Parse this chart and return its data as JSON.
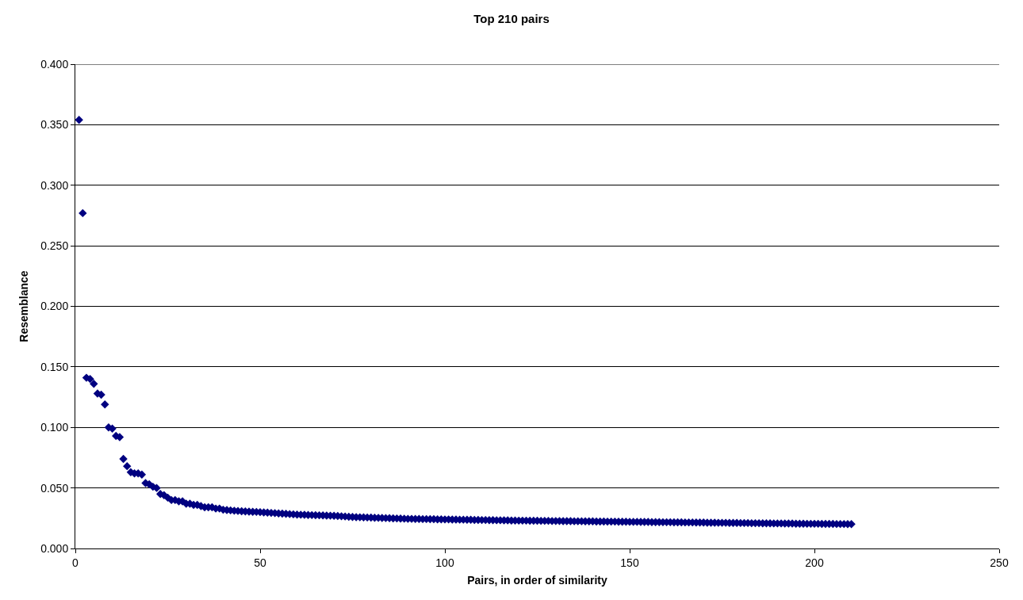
{
  "chart_data": {
    "type": "scatter",
    "title": "Top 210 pairs",
    "xlabel": "Pairs, in order of similarity",
    "ylabel": "Resemblance",
    "x": [
      1,
      2,
      3,
      4,
      5,
      6,
      7,
      8,
      9,
      10,
      11,
      12,
      13,
      14,
      15,
      16,
      17,
      18,
      19,
      20,
      21,
      22,
      23,
      24,
      25,
      26,
      27,
      28,
      29,
      30,
      31,
      32,
      33,
      34,
      35,
      36,
      37,
      38,
      39,
      40,
      41,
      42,
      43,
      44,
      45,
      46,
      47,
      48,
      49,
      50,
      51,
      52,
      53,
      54,
      55,
      56,
      57,
      58,
      59,
      60,
      61,
      62,
      63,
      64,
      65,
      66,
      67,
      68,
      69,
      70,
      71,
      72,
      73,
      74,
      75,
      76,
      77,
      78,
      79,
      80,
      81,
      82,
      83,
      84,
      85,
      86,
      87,
      88,
      89,
      90,
      91,
      92,
      93,
      94,
      95,
      96,
      97,
      98,
      99,
      100,
      101,
      102,
      103,
      104,
      105,
      106,
      107,
      108,
      109,
      110,
      111,
      112,
      113,
      114,
      115,
      116,
      117,
      118,
      119,
      120,
      121,
      122,
      123,
      124,
      125,
      126,
      127,
      128,
      129,
      130,
      131,
      132,
      133,
      134,
      135,
      136,
      137,
      138,
      139,
      140,
      141,
      142,
      143,
      144,
      145,
      146,
      147,
      148,
      149,
      150,
      151,
      152,
      153,
      154,
      155,
      156,
      157,
      158,
      159,
      160,
      161,
      162,
      163,
      164,
      165,
      166,
      167,
      168,
      169,
      170,
      171,
      172,
      173,
      174,
      175,
      176,
      177,
      178,
      179,
      180,
      181,
      182,
      183,
      184,
      185,
      186,
      187,
      188,
      189,
      190,
      191,
      192,
      193,
      194,
      195,
      196,
      197,
      198,
      199,
      200,
      201,
      202,
      203,
      204,
      205,
      206,
      207,
      208,
      209,
      210
    ],
    "series": [
      {
        "color": "#000080",
        "values": [
          0.354,
          0.277,
          0.141,
          0.14,
          0.136,
          0.128,
          0.127,
          0.119,
          0.1,
          0.099,
          0.093,
          0.092,
          0.074,
          0.068,
          0.063,
          0.062,
          0.062,
          0.061,
          0.054,
          0.053,
          0.051,
          0.05,
          0.045,
          0.044,
          0.042,
          0.04,
          0.04,
          0.039,
          0.039,
          0.037,
          0.037,
          0.036,
          0.036,
          0.035,
          0.034,
          0.034,
          0.034,
          0.033,
          0.033,
          0.032,
          0.0318,
          0.0315,
          0.0312,
          0.031,
          0.0308,
          0.0306,
          0.0304,
          0.0303,
          0.0302,
          0.03,
          0.0298,
          0.0296,
          0.0294,
          0.0292,
          0.029,
          0.0288,
          0.0286,
          0.0284,
          0.0282,
          0.028,
          0.0279,
          0.0278,
          0.0277,
          0.0276,
          0.0275,
          0.0274,
          0.0273,
          0.0272,
          0.0271,
          0.027,
          0.0268,
          0.0266,
          0.0264,
          0.0262,
          0.026,
          0.0259,
          0.0258,
          0.0257,
          0.0256,
          0.0255,
          0.0254,
          0.0253,
          0.0252,
          0.0251,
          0.025,
          0.0249,
          0.0248,
          0.0247,
          0.0246,
          0.0245,
          0.0245,
          0.0244,
          0.0244,
          0.0243,
          0.0243,
          0.0242,
          0.0242,
          0.0241,
          0.0241,
          0.024,
          0.024,
          0.0239,
          0.0239,
          0.0238,
          0.0238,
          0.0237,
          0.0237,
          0.0236,
          0.0236,
          0.0235,
          0.0235,
          0.0234,
          0.0234,
          0.0233,
          0.0233,
          0.0232,
          0.0232,
          0.0231,
          0.0231,
          0.023,
          0.023,
          0.023,
          0.0229,
          0.0229,
          0.0229,
          0.0228,
          0.0228,
          0.0228,
          0.0227,
          0.0227,
          0.0227,
          0.0226,
          0.0226,
          0.0226,
          0.0225,
          0.0225,
          0.0225,
          0.0224,
          0.0224,
          0.0224,
          0.0223,
          0.0223,
          0.0223,
          0.0222,
          0.0222,
          0.0222,
          0.0221,
          0.0221,
          0.0221,
          0.022,
          0.022,
          0.022,
          0.0219,
          0.0219,
          0.0219,
          0.0218,
          0.0218,
          0.0218,
          0.0217,
          0.0217,
          0.0217,
          0.0216,
          0.0216,
          0.0216,
          0.0215,
          0.0215,
          0.0215,
          0.0214,
          0.0214,
          0.0214,
          0.0213,
          0.0213,
          0.0213,
          0.0212,
          0.0212,
          0.0212,
          0.0211,
          0.0211,
          0.0211,
          0.021,
          0.021,
          0.021,
          0.0209,
          0.0209,
          0.0209,
          0.0208,
          0.0208,
          0.0208,
          0.0207,
          0.0207,
          0.0207,
          0.0206,
          0.0206,
          0.0206,
          0.0205,
          0.0205,
          0.0205,
          0.0204,
          0.0204,
          0.0204,
          0.0204,
          0.0203,
          0.0203,
          0.0203,
          0.0203,
          0.0202,
          0.0202,
          0.0202,
          0.0201,
          0.0201
        ]
      }
    ],
    "xlim": [
      0,
      250
    ],
    "xticks": [
      0,
      50,
      100,
      150,
      200,
      250
    ],
    "ylim": [
      0,
      0.4
    ],
    "yticks": [
      {
        "value": 0,
        "label": "0.000"
      },
      {
        "value": 0.05,
        "label": "0.050"
      },
      {
        "value": 0.1,
        "label": "0.100"
      },
      {
        "value": 0.15,
        "label": "0.150"
      },
      {
        "value": 0.2,
        "label": "0.200"
      },
      {
        "value": 0.25,
        "label": "0.250"
      },
      {
        "value": 0.3,
        "label": "0.300"
      },
      {
        "value": 0.35,
        "label": "0.350"
      },
      {
        "value": 0.4,
        "label": "0.400"
      }
    ],
    "grid": "y",
    "marker": "diamond"
  }
}
